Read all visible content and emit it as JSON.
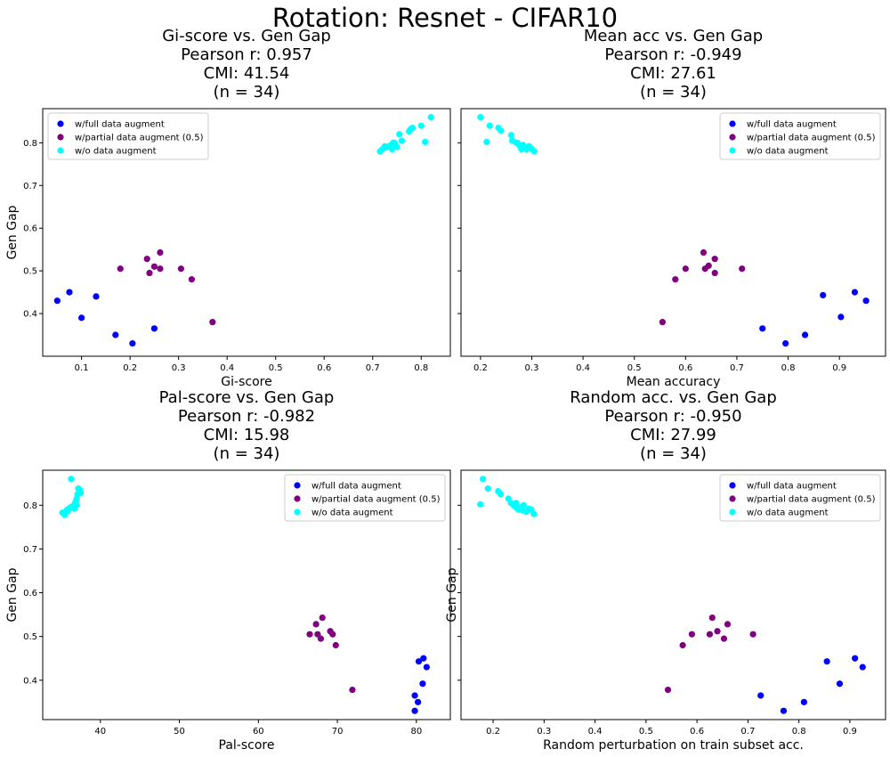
{
  "suptitle": "Rotation: Resnet - CIFAR10",
  "legend_labels": [
    "w/full data augment",
    "w/partial data augment (0.5)",
    "w/o data augment"
  ],
  "series_colors": [
    "#0000ff",
    "#800080",
    "#00ffff"
  ],
  "chart_data": [
    {
      "type": "scatter",
      "title_lines": [
        "Gi-score vs. Gen Gap",
        "Pearson r: 0.957",
        "CMI: 41.54",
        "(n = 34)"
      ],
      "xlabel": "Gi-score",
      "ylabel": "Gen Gap",
      "xlim": [
        0.02,
        0.86
      ],
      "ylim": [
        0.3,
        0.88
      ],
      "xticks": [
        0.1,
        0.2,
        0.3,
        0.4,
        0.5,
        0.6,
        0.7,
        0.8
      ],
      "xtick_labels": [
        "0.1",
        "0.2",
        "0.3",
        "0.4",
        "0.5",
        "0.6",
        "0.7",
        "0.8"
      ],
      "yticks": [
        0.4,
        0.5,
        0.6,
        0.7,
        0.8
      ],
      "ytick_labels": [
        "0.4",
        "0.5",
        "0.6",
        "0.7",
        "0.8"
      ],
      "show_ytick_labels": true,
      "legend_loc": "upper left",
      "series": [
        {
          "name": "w/full data augment",
          "points": [
            [
              0.05,
              0.43
            ],
            [
              0.075,
              0.45
            ],
            [
              0.1,
              0.39
            ],
            [
              0.13,
              0.44
            ],
            [
              0.17,
              0.35
            ],
            [
              0.205,
              0.33
            ],
            [
              0.25,
              0.365
            ]
          ]
        },
        {
          "name": "w/partial data augment (0.5)",
          "points": [
            [
              0.18,
              0.505
            ],
            [
              0.235,
              0.528
            ],
            [
              0.24,
              0.495
            ],
            [
              0.25,
              0.51
            ],
            [
              0.262,
              0.543
            ],
            [
              0.262,
              0.505
            ],
            [
              0.305,
              0.505
            ],
            [
              0.327,
              0.48
            ],
            [
              0.37,
              0.38
            ]
          ]
        },
        {
          "name": "w/o data augment",
          "points": [
            [
              0.715,
              0.78
            ],
            [
              0.72,
              0.785
            ],
            [
              0.725,
              0.792
            ],
            [
              0.73,
              0.79
            ],
            [
              0.735,
              0.793
            ],
            [
              0.74,
              0.785
            ],
            [
              0.742,
              0.8
            ],
            [
              0.745,
              0.795
            ],
            [
              0.75,
              0.79
            ],
            [
              0.755,
              0.82
            ],
            [
              0.76,
              0.805
            ],
            [
              0.775,
              0.827
            ],
            [
              0.778,
              0.832
            ],
            [
              0.782,
              0.835
            ],
            [
              0.8,
              0.84
            ],
            [
              0.808,
              0.802
            ],
            [
              0.82,
              0.86
            ],
            [
              0.745,
              0.8
            ]
          ]
        }
      ]
    },
    {
      "type": "scatter",
      "title_lines": [
        "Mean acc vs. Gen Gap",
        "Pearson r: -0.949",
        "CMI: 27.61",
        "(n = 34)"
      ],
      "xlabel": "Mean accuracy",
      "ylabel": "",
      "xlim": [
        0.162,
        0.99
      ],
      "ylim": [
        0.3,
        0.88
      ],
      "xticks": [
        0.2,
        0.3,
        0.4,
        0.5,
        0.6,
        0.7,
        0.8,
        0.9
      ],
      "xtick_labels": [
        "0.2",
        "0.3",
        "0.4",
        "0.5",
        "0.6",
        "0.7",
        "0.8",
        "0.9"
      ],
      "yticks": [
        0.4,
        0.5,
        0.6,
        0.7,
        0.8
      ],
      "ytick_labels": [
        "0.4",
        "0.5",
        "0.6",
        "0.7",
        "0.8"
      ],
      "show_ytick_labels": false,
      "legend_loc": "upper right",
      "series": [
        {
          "name": "w/full data augment",
          "points": [
            [
              0.75,
              0.365
            ],
            [
              0.795,
              0.33
            ],
            [
              0.833,
              0.35
            ],
            [
              0.868,
              0.443
            ],
            [
              0.903,
              0.392
            ],
            [
              0.93,
              0.45
            ],
            [
              0.952,
              0.43
            ]
          ]
        },
        {
          "name": "w/partial data augment (0.5)",
          "points": [
            [
              0.555,
              0.38
            ],
            [
              0.58,
              0.48
            ],
            [
              0.6,
              0.505
            ],
            [
              0.635,
              0.543
            ],
            [
              0.638,
              0.505
            ],
            [
              0.645,
              0.512
            ],
            [
              0.657,
              0.528
            ],
            [
              0.657,
              0.495
            ],
            [
              0.71,
              0.505
            ]
          ]
        },
        {
          "name": "w/o data augment",
          "points": [
            [
              0.2,
              0.86
            ],
            [
              0.212,
              0.802
            ],
            [
              0.218,
              0.84
            ],
            [
              0.235,
              0.835
            ],
            [
              0.24,
              0.828
            ],
            [
              0.26,
              0.818
            ],
            [
              0.262,
              0.805
            ],
            [
              0.272,
              0.8
            ],
            [
              0.275,
              0.795
            ],
            [
              0.278,
              0.79
            ],
            [
              0.28,
              0.785
            ],
            [
              0.285,
              0.79
            ],
            [
              0.29,
              0.785
            ],
            [
              0.295,
              0.792
            ],
            [
              0.3,
              0.785
            ],
            [
              0.305,
              0.78
            ],
            [
              0.27,
              0.8
            ],
            [
              0.283,
              0.795
            ]
          ]
        }
      ]
    },
    {
      "type": "scatter",
      "title_lines": [
        "Pal-score vs. Gen Gap",
        "Pearson r: -0.982",
        "CMI: 15.98",
        "(n = 34)"
      ],
      "xlabel": "Pal-score",
      "ylabel": "Gen Gap",
      "xlim": [
        32.7,
        84.3
      ],
      "ylim": [
        0.31,
        0.88
      ],
      "xticks": [
        40,
        50,
        60,
        70,
        80
      ],
      "xtick_labels": [
        "40",
        "50",
        "60",
        "70",
        "80"
      ],
      "yticks": [
        0.4,
        0.5,
        0.6,
        0.7,
        0.8
      ],
      "ytick_labels": [
        "0.4",
        "0.5",
        "0.6",
        "0.7",
        "0.8"
      ],
      "show_ytick_labels": true,
      "legend_loc": "upper right",
      "series": [
        {
          "name": "w/full data augment",
          "points": [
            [
              79.8,
              0.33
            ],
            [
              79.8,
              0.365
            ],
            [
              80.2,
              0.35
            ],
            [
              80.3,
              0.443
            ],
            [
              80.8,
              0.392
            ],
            [
              80.9,
              0.45
            ],
            [
              81.3,
              0.43
            ]
          ]
        },
        {
          "name": "w/partial data augment (0.5)",
          "points": [
            [
              66.5,
              0.505
            ],
            [
              67.3,
              0.528
            ],
            [
              67.9,
              0.495
            ],
            [
              68.1,
              0.543
            ],
            [
              69.1,
              0.512
            ],
            [
              69.4,
              0.505
            ],
            [
              69.8,
              0.48
            ],
            [
              71.9,
              0.378
            ],
            [
              67.5,
              0.505
            ]
          ]
        },
        {
          "name": "w/o data augment",
          "points": [
            [
              35.2,
              0.783
            ],
            [
              35.5,
              0.778
            ],
            [
              35.8,
              0.79
            ],
            [
              36.1,
              0.793
            ],
            [
              36.3,
              0.86
            ],
            [
              36.5,
              0.798
            ],
            [
              36.7,
              0.792
            ],
            [
              36.8,
              0.805
            ],
            [
              37.0,
              0.815
            ],
            [
              37.2,
              0.838
            ],
            [
              37.3,
              0.83
            ],
            [
              37.4,
              0.835
            ],
            [
              37.5,
              0.828
            ],
            [
              37.0,
              0.8
            ],
            [
              36.2,
              0.795
            ],
            [
              36.9,
              0.81
            ],
            [
              37.1,
              0.825
            ],
            [
              35.9,
              0.787
            ]
          ]
        }
      ]
    },
    {
      "type": "scatter",
      "title_lines": [
        "Random acc. vs. Gen Gap",
        "Pearson r: -0.950",
        "CMI: 27.99",
        "(n = 34)"
      ],
      "xlabel": "Random perturbation on train subset acc.",
      "ylabel": "Gen Gap",
      "xlim": [
        0.137,
        0.97
      ],
      "ylim": [
        0.31,
        0.88
      ],
      "xticks": [
        0.2,
        0.3,
        0.4,
        0.5,
        0.6,
        0.7,
        0.8,
        0.9
      ],
      "xtick_labels": [
        "0.2",
        "0.3",
        "0.4",
        "0.5",
        "0.6",
        "0.7",
        "0.8",
        "0.9"
      ],
      "yticks": [
        0.4,
        0.5,
        0.6,
        0.7,
        0.8
      ],
      "ytick_labels": [
        "0.4",
        "0.5",
        "0.6",
        "0.7",
        "0.8"
      ],
      "show_ytick_labels": false,
      "legend_loc": "upper right",
      "series": [
        {
          "name": "w/full data augment",
          "points": [
            [
              0.725,
              0.365
            ],
            [
              0.77,
              0.33
            ],
            [
              0.81,
              0.35
            ],
            [
              0.855,
              0.443
            ],
            [
              0.88,
              0.392
            ],
            [
              0.91,
              0.45
            ],
            [
              0.925,
              0.43
            ]
          ]
        },
        {
          "name": "w/partial data augment (0.5)",
          "points": [
            [
              0.543,
              0.378
            ],
            [
              0.572,
              0.48
            ],
            [
              0.59,
              0.505
            ],
            [
              0.625,
              0.505
            ],
            [
              0.63,
              0.543
            ],
            [
              0.64,
              0.512
            ],
            [
              0.653,
              0.495
            ],
            [
              0.66,
              0.528
            ],
            [
              0.71,
              0.505
            ]
          ]
        },
        {
          "name": "w/o data augment",
          "points": [
            [
              0.175,
              0.802
            ],
            [
              0.18,
              0.86
            ],
            [
              0.19,
              0.838
            ],
            [
              0.21,
              0.832
            ],
            [
              0.215,
              0.825
            ],
            [
              0.23,
              0.815
            ],
            [
              0.24,
              0.8
            ],
            [
              0.245,
              0.805
            ],
            [
              0.25,
              0.79
            ],
            [
              0.255,
              0.795
            ],
            [
              0.26,
              0.8
            ],
            [
              0.265,
              0.785
            ],
            [
              0.27,
              0.792
            ],
            [
              0.28,
              0.78
            ],
            [
              0.245,
              0.795
            ],
            [
              0.258,
              0.788
            ],
            [
              0.235,
              0.805
            ],
            [
              0.275,
              0.79
            ]
          ]
        }
      ]
    }
  ]
}
